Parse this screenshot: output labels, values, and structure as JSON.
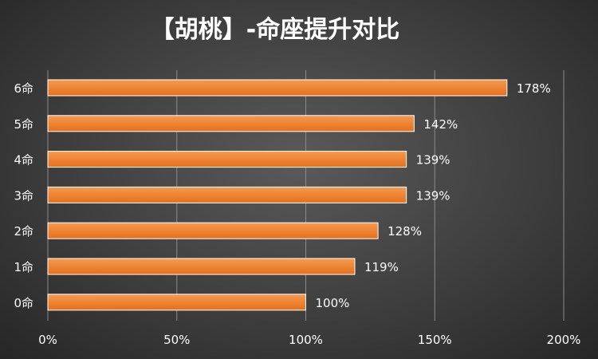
{
  "chart_data": {
    "type": "bar",
    "orientation": "horizontal",
    "title": "【胡桃】-命座提升对比",
    "categories": [
      "6命",
      "5命",
      "4命",
      "3命",
      "2命",
      "1命",
      "0命"
    ],
    "values": [
      178,
      142,
      139,
      139,
      128,
      119,
      100
    ],
    "value_labels": [
      "178%",
      "142%",
      "139%",
      "139%",
      "128%",
      "119%",
      "100%"
    ],
    "xlim": [
      0,
      200
    ],
    "xticks": [
      0,
      50,
      100,
      150,
      200
    ],
    "xtick_labels": [
      "0%",
      "50%",
      "100%",
      "150%",
      "200%"
    ],
    "grid": true,
    "legend": "none",
    "colors": {
      "bar_top": "#f59a4f",
      "bar_bottom": "#e66f19",
      "bar_border": "#ffffff"
    }
  }
}
